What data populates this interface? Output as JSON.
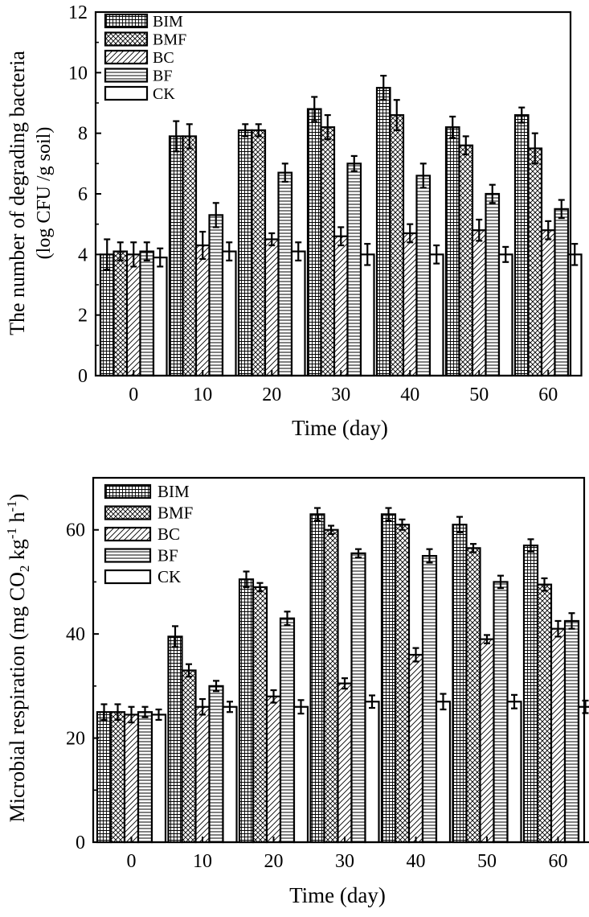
{
  "legend_entries": [
    "BIM",
    "BMF",
    "BC",
    "BF",
    "CK"
  ],
  "chart_data": [
    {
      "type": "bar",
      "title": "",
      "xlabel": "Time (day)",
      "ylabel": "The number of degrading bacteria",
      "ylabel_sub": "(log CFU /g soil)",
      "ylim": [
        0,
        12
      ],
      "yticks": [
        0,
        2,
        4,
        6,
        8,
        10,
        12
      ],
      "legend_position": "top-left",
      "grid": false,
      "categories": [
        "0",
        "10",
        "20",
        "30",
        "40",
        "50",
        "60"
      ],
      "series": [
        {
          "name": "BIM",
          "pattern": "grid",
          "values": [
            4.0,
            7.9,
            8.1,
            8.8,
            9.5,
            8.2,
            8.6
          ],
          "errors": [
            0.5,
            0.5,
            0.2,
            0.4,
            0.4,
            0.35,
            0.25
          ]
        },
        {
          "name": "BMF",
          "pattern": "crosshatch",
          "values": [
            4.1,
            7.9,
            8.1,
            8.2,
            8.6,
            7.6,
            7.5
          ],
          "errors": [
            0.3,
            0.4,
            0.2,
            0.4,
            0.5,
            0.3,
            0.5
          ]
        },
        {
          "name": "BC",
          "pattern": "diagonal",
          "values": [
            4.0,
            4.3,
            4.5,
            4.6,
            4.7,
            4.8,
            4.8
          ],
          "errors": [
            0.4,
            0.45,
            0.2,
            0.3,
            0.3,
            0.35,
            0.3
          ]
        },
        {
          "name": "BF",
          "pattern": "horizontal",
          "values": [
            4.1,
            5.3,
            6.7,
            7.0,
            6.6,
            6.0,
            5.5
          ],
          "errors": [
            0.3,
            0.4,
            0.3,
            0.25,
            0.4,
            0.3,
            0.3
          ]
        },
        {
          "name": "CK",
          "pattern": "none",
          "values": [
            3.9,
            4.1,
            4.1,
            4.0,
            4.0,
            4.0,
            4.0
          ],
          "errors": [
            0.3,
            0.3,
            0.3,
            0.35,
            0.3,
            0.25,
            0.35
          ]
        }
      ]
    },
    {
      "type": "bar",
      "title": "",
      "xlabel": "Time (day)",
      "ylabel": "Microbial respiration (mg CO",
      "ylabel_sub2": "2",
      "ylabel_mid": " kg",
      "ylabel_sup1": "-1",
      "ylabel_h": " h",
      "ylabel_sup2": "-1",
      "ylabel_close": ")",
      "ylim": [
        0,
        70
      ],
      "yticks": [
        0,
        20,
        40,
        60
      ],
      "legend_position": "top-left",
      "grid": false,
      "categories": [
        "0",
        "10",
        "20",
        "30",
        "40",
        "50",
        "60"
      ],
      "series": [
        {
          "name": "BIM",
          "pattern": "grid",
          "values": [
            25,
            39.5,
            50.5,
            63,
            63,
            61,
            57
          ],
          "errors": [
            1.5,
            2,
            1.5,
            1.2,
            1.2,
            1.5,
            1.2
          ]
        },
        {
          "name": "BMF",
          "pattern": "crosshatch",
          "values": [
            25,
            33,
            49,
            60,
            61,
            56.5,
            49.5
          ],
          "errors": [
            1.5,
            1.2,
            0.8,
            0.8,
            1.0,
            0.8,
            1.2
          ]
        },
        {
          "name": "BC",
          "pattern": "diagonal",
          "values": [
            24.5,
            26,
            28,
            30.5,
            36,
            39,
            41
          ],
          "errors": [
            1.5,
            1.5,
            1.2,
            1.0,
            1.3,
            0.8,
            1.5
          ]
        },
        {
          "name": "BF",
          "pattern": "horizontal",
          "values": [
            25,
            30,
            43,
            55.5,
            55,
            50,
            42.5
          ],
          "errors": [
            1.0,
            1.0,
            1.3,
            0.8,
            1.3,
            1.2,
            1.5
          ]
        },
        {
          "name": "CK",
          "pattern": "none",
          "values": [
            24.5,
            26,
            26,
            27,
            27,
            27,
            26
          ],
          "errors": [
            1.0,
            1.0,
            1.3,
            1.2,
            1.5,
            1.3,
            1.2
          ]
        }
      ]
    }
  ]
}
